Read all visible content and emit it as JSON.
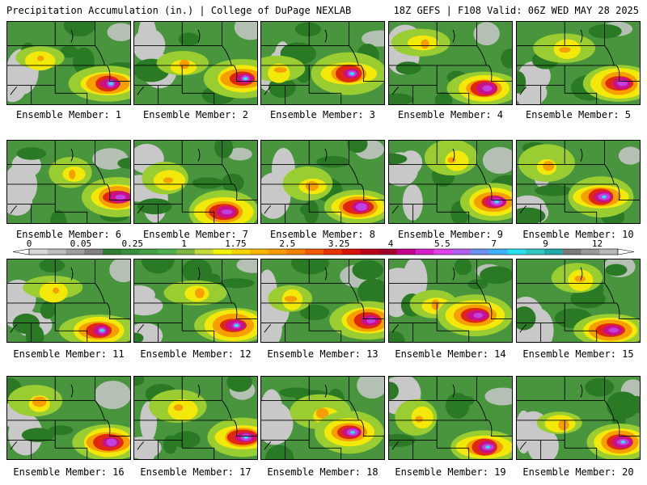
{
  "header": {
    "left": "Precipitation Accumulation (in.) | College of DuPage NEXLAB",
    "right": "18Z GEFS | F108 Valid: 06Z WED MAY 28 2025"
  },
  "member_label_prefix": "Ensemble Member: ",
  "members": [
    1,
    2,
    3,
    4,
    5,
    6,
    7,
    8,
    9,
    10,
    11,
    12,
    13,
    14,
    15,
    16,
    17,
    18,
    19,
    20
  ],
  "color_scale": {
    "tick_labels": [
      "0",
      "0.05",
      "0.25",
      "1",
      "1.75",
      "2.5",
      "3.25",
      "4",
      "5.5",
      "7",
      "9",
      "12"
    ],
    "colors": [
      "#d8d8d8",
      "#bdbdbd",
      "#9e9e9e",
      "#808080",
      "#2e7d32",
      "#388e3c",
      "#43a047",
      "#4caf50",
      "#7cb342",
      "#c6d93a",
      "#f2f20a",
      "#f5d300",
      "#f7b500",
      "#f59a00",
      "#f27f00",
      "#ef5a00",
      "#e53200",
      "#d8100a",
      "#b8001a",
      "#a0002a",
      "#c2008c",
      "#d420c8",
      "#e040e8",
      "#b060f0",
      "#6a90f0",
      "#3fb0ff",
      "#2ae0f0",
      "#30c8c0",
      "#22a8a8",
      "#7a7a7a",
      "#999999",
      "#b8b8b8"
    ]
  },
  "map_palette": {
    "dry": "#c8c8c8",
    "green": "#3a8f2f",
    "dark_green": "#2a7a25",
    "light_green": "#9acd32",
    "yellow": "#f2e80a",
    "orange": "#f5a000",
    "red": "#e02810",
    "magenta": "#c8108a",
    "purple": "#c040e0",
    "cyan": "#30e0f0"
  }
}
